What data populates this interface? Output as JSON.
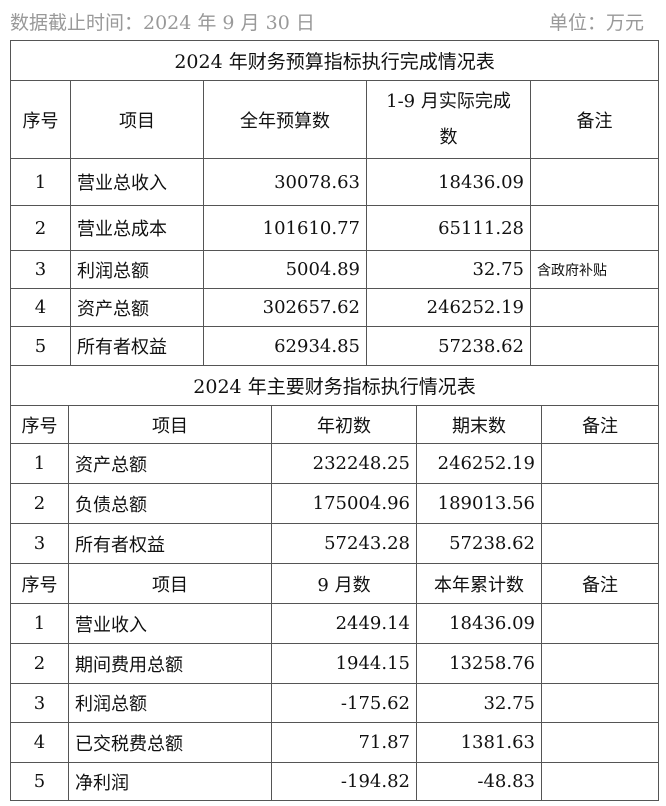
{
  "header": {
    "date": "数据截止时间：2024 年 9 月 30 日",
    "unit": "单位：万元"
  },
  "budget": {
    "title": "2024 年财务预算指标执行完成情况表",
    "columns": [
      "序号",
      "项目",
      "全年预算数",
      "1-9 月实际完成数",
      "备注"
    ],
    "rows": [
      [
        "1",
        "营业总收入",
        "30078.63",
        "18436.09",
        ""
      ],
      [
        "2",
        "营业总成本",
        "101610.77",
        "65111.28",
        ""
      ],
      [
        "3",
        "利润总额",
        "5004.89",
        "32.75",
        "含政府补贴"
      ],
      [
        "4",
        "资产总额",
        "302657.62",
        "246252.19",
        ""
      ],
      [
        "5",
        "所有者权益",
        "62934.85",
        "57238.62",
        ""
      ]
    ]
  },
  "main": {
    "title": "2024 年主要财务指标执行情况表",
    "columns": [
      "序号",
      "项目",
      "年初数",
      "期末数",
      "备注"
    ],
    "rows": [
      [
        "1",
        "资产总额",
        "232248.25",
        "246252.19",
        ""
      ],
      [
        "2",
        "负债总额",
        "175004.96",
        "189013.56",
        ""
      ],
      [
        "3",
        "所有者权益",
        "57243.28",
        "57238.62",
        ""
      ]
    ],
    "columns2": [
      "序号",
      "项目",
      "9 月数",
      "本年累计数",
      "备注"
    ],
    "rows2": [
      [
        "1",
        "营业收入",
        "2449.14",
        "18436.09",
        ""
      ],
      [
        "2",
        "期间费用总额",
        "1944.15",
        "13258.76",
        ""
      ],
      [
        "3",
        "利润总额",
        "-175.62",
        "32.75",
        ""
      ],
      [
        "4",
        "已交税费总额",
        "71.87",
        "1381.63",
        ""
      ],
      [
        "5",
        "净利润",
        "-194.82",
        "-48.83",
        ""
      ]
    ]
  }
}
